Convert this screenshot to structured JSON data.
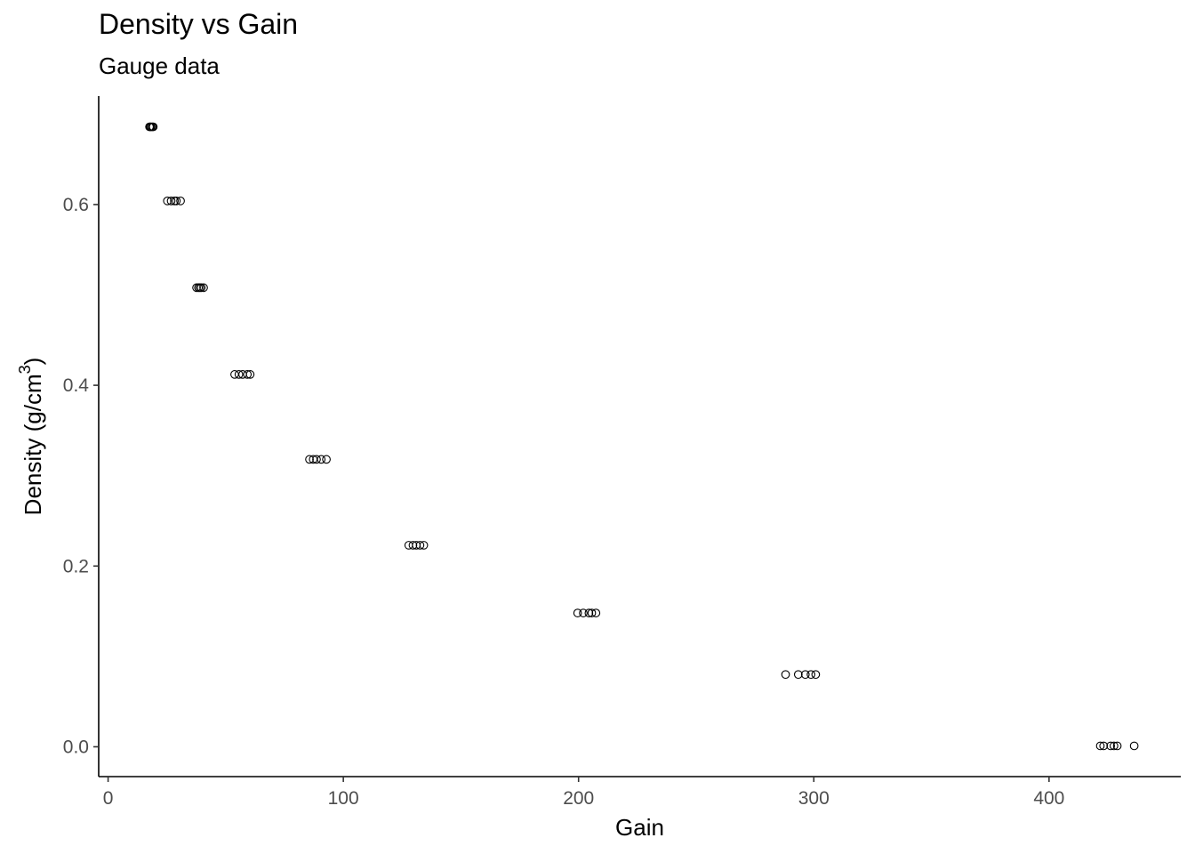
{
  "chart_data": {
    "type": "scatter",
    "title": "Density vs Gain",
    "subtitle": "Gauge data",
    "xlabel": "Gain",
    "ylabel": {
      "text": "Density",
      "unit_prefix": "g/cm",
      "unit_superscript": "3"
    },
    "xlim": [
      -4,
      456
    ],
    "ylim": [
      -0.033,
      0.72
    ],
    "x_ticks": [
      0,
      100,
      200,
      300,
      400
    ],
    "x_tick_labels": [
      "0",
      "100",
      "200",
      "300",
      "400"
    ],
    "y_ticks": [
      0.0,
      0.2,
      0.4,
      0.6
    ],
    "y_tick_labels": [
      "0.0",
      "0.2",
      "0.4",
      "0.6"
    ],
    "grid": false,
    "marker": "open-circle",
    "points": [
      {
        "x": 17.6,
        "y": 0.686
      },
      {
        "x": 17.9,
        "y": 0.686
      },
      {
        "x": 18.3,
        "y": 0.686
      },
      {
        "x": 18.8,
        "y": 0.686
      },
      {
        "x": 19.2,
        "y": 0.686
      },
      {
        "x": 25.2,
        "y": 0.604
      },
      {
        "x": 26.8,
        "y": 0.604
      },
      {
        "x": 28.2,
        "y": 0.604
      },
      {
        "x": 29.0,
        "y": 0.604
      },
      {
        "x": 30.8,
        "y": 0.604
      },
      {
        "x": 37.6,
        "y": 0.508
      },
      {
        "x": 38.4,
        "y": 0.508
      },
      {
        "x": 39.0,
        "y": 0.508
      },
      {
        "x": 39.6,
        "y": 0.508
      },
      {
        "x": 40.6,
        "y": 0.508
      },
      {
        "x": 53.8,
        "y": 0.412
      },
      {
        "x": 55.6,
        "y": 0.412
      },
      {
        "x": 57.2,
        "y": 0.412
      },
      {
        "x": 59.2,
        "y": 0.412
      },
      {
        "x": 60.4,
        "y": 0.412
      },
      {
        "x": 85.6,
        "y": 0.318
      },
      {
        "x": 87.2,
        "y": 0.318
      },
      {
        "x": 88.6,
        "y": 0.318
      },
      {
        "x": 90.6,
        "y": 0.318
      },
      {
        "x": 92.8,
        "y": 0.318
      },
      {
        "x": 127.8,
        "y": 0.223
      },
      {
        "x": 129.6,
        "y": 0.223
      },
      {
        "x": 131.0,
        "y": 0.223
      },
      {
        "x": 132.6,
        "y": 0.223
      },
      {
        "x": 134.2,
        "y": 0.223
      },
      {
        "x": 199.6,
        "y": 0.148
      },
      {
        "x": 202.0,
        "y": 0.148
      },
      {
        "x": 204.4,
        "y": 0.148
      },
      {
        "x": 205.6,
        "y": 0.148
      },
      {
        "x": 207.4,
        "y": 0.148
      },
      {
        "x": 288.0,
        "y": 0.08
      },
      {
        "x": 293.4,
        "y": 0.08
      },
      {
        "x": 296.4,
        "y": 0.08
      },
      {
        "x": 298.8,
        "y": 0.08
      },
      {
        "x": 300.8,
        "y": 0.08
      },
      {
        "x": 421.8,
        "y": 0.001
      },
      {
        "x": 423.2,
        "y": 0.001
      },
      {
        "x": 426.2,
        "y": 0.001
      },
      {
        "x": 427.6,
        "y": 0.001
      },
      {
        "x": 429.0,
        "y": 0.001
      },
      {
        "x": 436.2,
        "y": 0.001
      }
    ]
  }
}
